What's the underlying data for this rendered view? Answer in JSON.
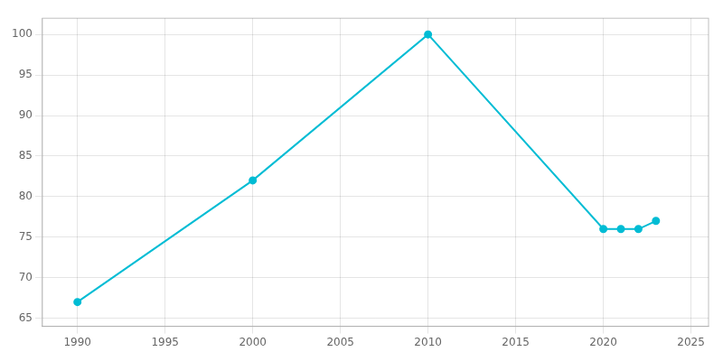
{
  "chart_data": {
    "type": "line",
    "x": [
      1990,
      2000,
      2010,
      2020,
      2021,
      2022,
      2023
    ],
    "values": [
      67,
      82,
      100,
      76,
      76,
      76,
      77
    ],
    "color": "#00bcd4",
    "marker": "circle",
    "xlim": [
      1988,
      2026
    ],
    "ylim": [
      64,
      102
    ],
    "xticks": [
      1990,
      1995,
      2000,
      2005,
      2010,
      2015,
      2020,
      2025
    ],
    "yticks": [
      65,
      70,
      75,
      80,
      85,
      90,
      95,
      100
    ],
    "grid": true
  }
}
